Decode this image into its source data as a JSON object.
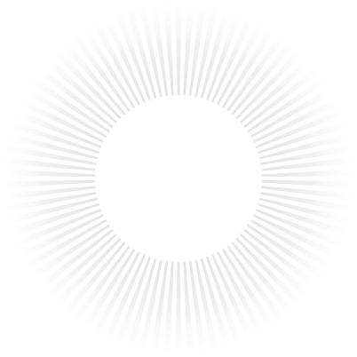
{
  "burst": {
    "ray_count": 90,
    "ray_color": "#e6e6e6",
    "background_color": "#ffffff",
    "center_color": "#ffffff"
  }
}
